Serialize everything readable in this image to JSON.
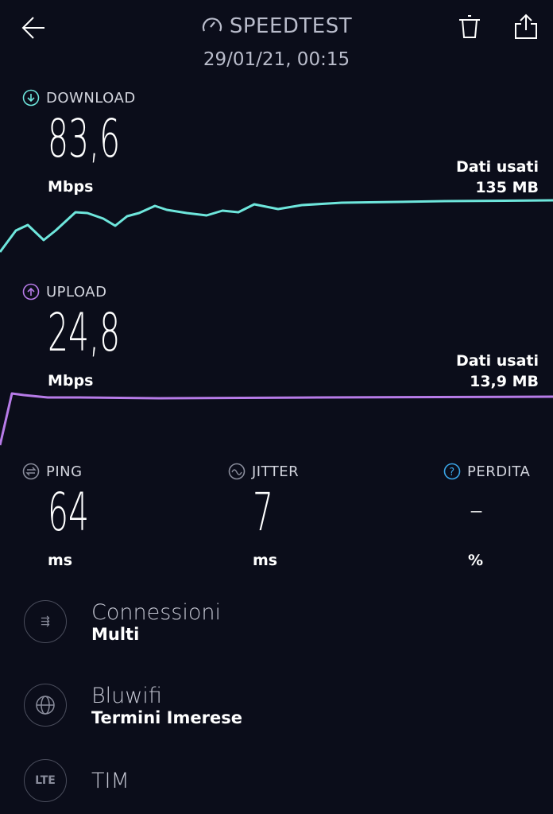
{
  "header": {
    "title": "SPEEDTEST",
    "date": "29/01/21, 00:15"
  },
  "download": {
    "label": "DOWNLOAD",
    "value": "83,6",
    "unit": "Mbps",
    "data_used_label": "Dati usati",
    "data_used": "135 MB",
    "color": "#6ee6dc"
  },
  "upload": {
    "label": "UPLOAD",
    "value": "24,8",
    "unit": "Mbps",
    "data_used_label": "Dati usati",
    "data_used": "13,9 MB",
    "color": "#b77be8"
  },
  "ping": {
    "label": "PING",
    "value": "64",
    "unit": "ms"
  },
  "jitter": {
    "label": "JITTER",
    "value": "7",
    "unit": "ms"
  },
  "loss": {
    "label": "PERDITA",
    "value": "–",
    "unit": "%",
    "color": "#3aa6e8"
  },
  "info": [
    {
      "icon": "connections-icon",
      "title": "Connessioni",
      "subtitle": "Multi"
    },
    {
      "icon": "globe-icon",
      "title": "Bluwifi",
      "subtitle": "Termini Imerese"
    },
    {
      "icon": "lte-icon",
      "icon_text": "LTE",
      "title": "TIM"
    }
  ]
}
